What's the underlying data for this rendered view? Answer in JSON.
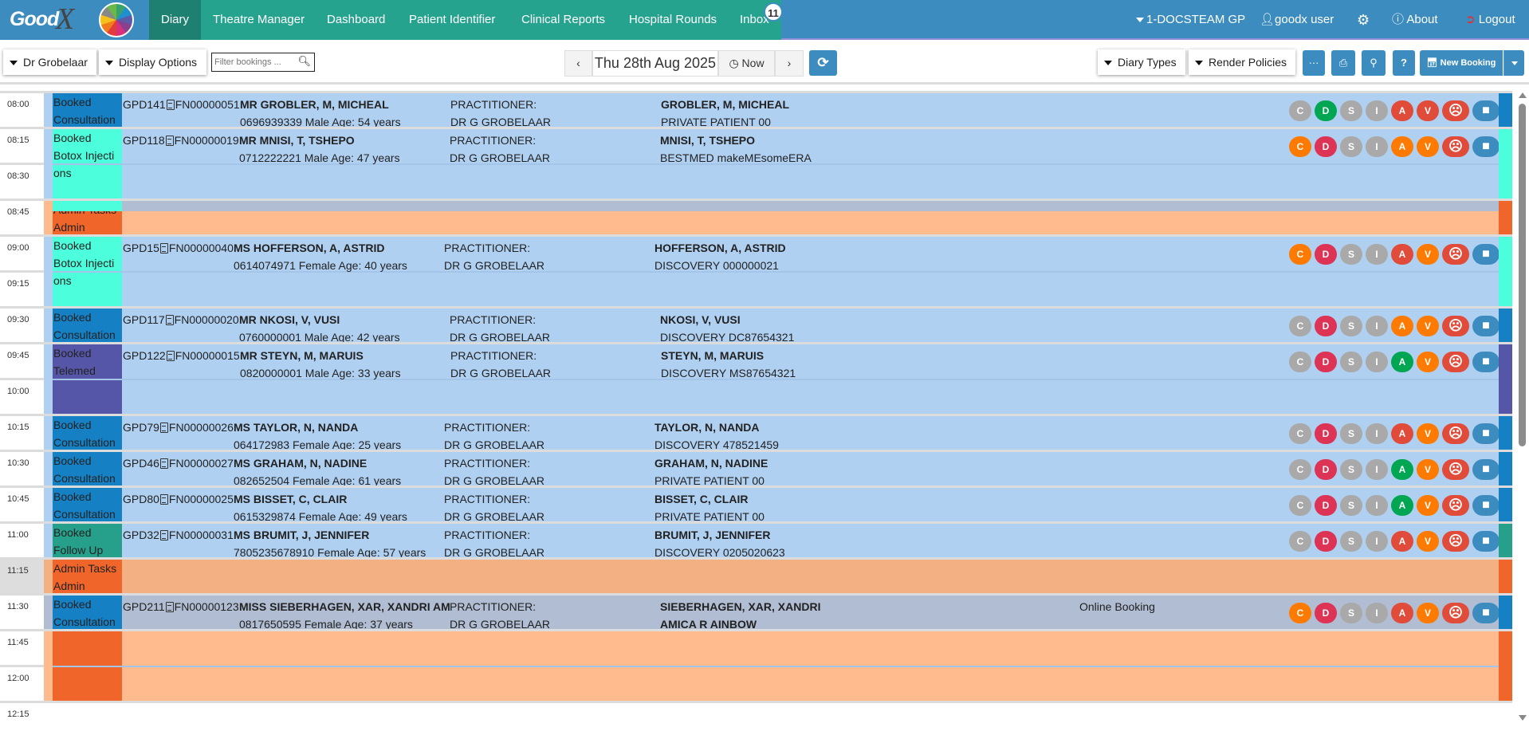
{
  "nav": {
    "logo_text": "GoodX",
    "items": [
      "Diary",
      "Theatre Manager",
      "Dashboard",
      "Patient Identifier",
      "Clinical Reports",
      "Hospital Rounds",
      "Inbox"
    ],
    "active": "Diary",
    "inbox_count": "11",
    "practice": "1-DOCSTEAM GP",
    "user": "goodx user",
    "about": "About",
    "logout": "Logout"
  },
  "toolbar": {
    "doctor": "Dr Grobelaar",
    "display_options": "Display Options",
    "filter_placeholder": "Filter bookings ...",
    "date": "Thu 28th Aug 2025",
    "now": "Now",
    "diary_types": "Diary Types",
    "render_policies": "Render Policies",
    "more": "···",
    "help": "?",
    "new_booking": "New Booking"
  },
  "times": [
    "08:00",
    "08:15",
    "08:30",
    "08:45",
    "09:00",
    "09:15",
    "09:30",
    "09:45",
    "10:00",
    "10:15",
    "10:30",
    "10:45",
    "11:00",
    "11:15",
    "11:30",
    "11:45",
    "12:00",
    "12:15"
  ],
  "highlighted_time": "11:15",
  "colors": {
    "gray": "#a9a9a9",
    "green": "#00a651",
    "red": "#e04b3a",
    "orange": "#ff7a00",
    "crimson": "#dd3355",
    "note": "#3d8cbf",
    "consultation": "#1580c4",
    "botox": "#4dfedd",
    "telemed": "#5656a8",
    "followup": "#26a08a",
    "admin": "#f06529",
    "row_bg": "#b0d0f2",
    "admin_bg": "#ffbb8e",
    "admin_bg_dark": "#f2b083",
    "online_bg": "#b0bdd2"
  },
  "bookings": [
    {
      "time": "08:00",
      "slots": 1,
      "status": [
        "Booked",
        "Consultation"
      ],
      "type": "consultation",
      "ref": "GPD141",
      "file": "FN00000051",
      "name": "MR GROBLER, M, MICHEAL",
      "contact": "0696939339 Male Age: 54 years",
      "practitioner_label": "PRACTITIONER:",
      "practitioner": "DR G GROBELAAR",
      "insurer_name": "GROBLER, M, MICHEAL",
      "insurer": "PRIVATE PATIENT 00",
      "note": "",
      "badges": [
        "gray",
        "green",
        "gray",
        "gray",
        "red",
        "red"
      ]
    },
    {
      "time": "08:15",
      "slots": 2,
      "status": [
        "Booked",
        "Botox Injecti",
        "ons"
      ],
      "type": "botox",
      "ref": "GPD118",
      "file": "FN00000019",
      "name": "MR MNISI, T, TSHEPO",
      "contact": "0712222221 Male Age: 47 years",
      "practitioner_label": "PRACTITIONER:",
      "practitioner": "DR G GROBELAAR",
      "insurer_name": "MNISI, T, TSHEPO",
      "insurer": "BESTMED makeMEsomeERA",
      "note": "",
      "badges": [
        "orange",
        "crimson",
        "gray",
        "gray",
        "orange",
        "orange"
      ]
    },
    {
      "time": "08:45",
      "slots": 1,
      "status": [
        "Admin Tasks",
        "Admin"
      ],
      "type": "admin",
      "bg": "admin_bg"
    },
    {
      "time": "09:00",
      "slots": 2,
      "status": [
        "Booked",
        "Botox Injecti",
        "ons"
      ],
      "type": "botox",
      "ref": "GPD15",
      "file": "FN00000040",
      "name": "MS HOFFERSON, A, ASTRID",
      "contact": "0614074971 Female Age: 40 years",
      "practitioner_label": "PRACTITIONER:",
      "practitioner": "DR G GROBELAAR",
      "insurer_name": "HOFFERSON, A, ASTRID",
      "insurer": "DISCOVERY 000000021",
      "note": "",
      "badges": [
        "orange",
        "crimson",
        "gray",
        "gray",
        "red",
        "orange"
      ]
    },
    {
      "time": "09:30",
      "slots": 1,
      "status": [
        "Booked",
        "Consultation"
      ],
      "type": "consultation",
      "ref": "GPD117",
      "file": "FN00000020",
      "name": "MR NKOSI, V, VUSI",
      "contact": "0760000001 Male Age: 42 years",
      "practitioner_label": "PRACTITIONER:",
      "practitioner": "DR G GROBELAAR",
      "insurer_name": "NKOSI, V, VUSI",
      "insurer": "DISCOVERY DC87654321",
      "note": "",
      "badges": [
        "gray",
        "crimson",
        "gray",
        "gray",
        "orange",
        "orange"
      ]
    },
    {
      "time": "09:45",
      "slots": 2,
      "status": [
        "Booked",
        "Telemed"
      ],
      "type": "telemed",
      "ref": "GPD122",
      "file": "FN00000015",
      "name": "MR STEYN, M, MARUIS",
      "contact": "0820000001 Male Age: 33 years",
      "practitioner_label": "PRACTITIONER:",
      "practitioner": "DR G GROBELAAR",
      "insurer_name": "STEYN, M, MARUIS",
      "insurer": "DISCOVERY MS87654321",
      "note": "",
      "badges": [
        "gray",
        "crimson",
        "gray",
        "gray",
        "green",
        "orange"
      ]
    },
    {
      "time": "10:15",
      "slots": 1,
      "status": [
        "Booked",
        "Consultation"
      ],
      "type": "consultation",
      "ref": "GPD79",
      "file": "FN00000026",
      "name": "MS TAYLOR, N, NANDA",
      "contact": "064172983 Female Age: 25 years",
      "practitioner_label": "PRACTITIONER:",
      "practitioner": "DR G GROBELAAR",
      "insurer_name": "TAYLOR, N, NANDA",
      "insurer": "DISCOVERY 478521459",
      "note": "",
      "badges": [
        "gray",
        "crimson",
        "gray",
        "gray",
        "red",
        "orange"
      ]
    },
    {
      "time": "10:30",
      "slots": 1,
      "status": [
        "Booked",
        "Consultation"
      ],
      "type": "consultation",
      "ref": "GPD46",
      "file": "FN00000027",
      "name": "MS GRAHAM, N, NADINE",
      "contact": "082652504 Female Age: 61 years",
      "practitioner_label": "PRACTITIONER:",
      "practitioner": "DR G GROBELAAR",
      "insurer_name": "GRAHAM, N, NADINE",
      "insurer": "PRIVATE PATIENT 00",
      "note": "",
      "badges": [
        "gray",
        "crimson",
        "gray",
        "gray",
        "green",
        "orange"
      ]
    },
    {
      "time": "10:45",
      "slots": 1,
      "status": [
        "Booked",
        "Consultation"
      ],
      "type": "consultation",
      "ref": "GPD80",
      "file": "FN00000025",
      "name": "MS BISSET, C, CLAIR",
      "contact": "0615329874 Female Age: 49 years",
      "practitioner_label": "PRACTITIONER:",
      "practitioner": "DR G GROBELAAR",
      "insurer_name": "BISSET, C, CLAIR",
      "insurer": "PRIVATE PATIENT 00",
      "note": "",
      "badges": [
        "gray",
        "crimson",
        "gray",
        "gray",
        "green",
        "orange"
      ]
    },
    {
      "time": "11:00",
      "slots": 1,
      "status": [
        "Booked",
        "Follow Up"
      ],
      "type": "followup",
      "ref": "GPD32",
      "file": "FN00000031",
      "name": "MS BRUMIT, J, JENNIFER",
      "contact": "7805235678910 Female Age: 57 years",
      "practitioner_label": "PRACTITIONER:",
      "practitioner": "DR G GROBELAAR",
      "insurer_name": "BRUMIT, J, JENNIFER",
      "insurer": "DISCOVERY 0205020623",
      "note": "",
      "badges": [
        "gray",
        "crimson",
        "gray",
        "gray",
        "red",
        "orange"
      ]
    },
    {
      "time": "11:15",
      "slots": 1,
      "status": [
        "Admin Tasks",
        "Admin"
      ],
      "type": "admin",
      "bg": "admin_bg_dark"
    },
    {
      "time": "11:30",
      "slots": 1,
      "status": [
        "Booked",
        "Consultation"
      ],
      "type": "consultation",
      "bg": "online_bg",
      "ref": "GPD211",
      "file": "FN00000123",
      "name": "MISS SIEBERHAGEN, XAR, XANDRI AMICA RAINBOW",
      "contact": "0817650595 Female Age: 37 years",
      "practitioner_label": "PRACTITIONER:",
      "practitioner": "DR G GROBELAAR",
      "insurer_name": "SIEBERHAGEN, XAR, XANDRI AMICA R AINBOW",
      "insurer": "",
      "note": "Online Booking",
      "badges": [
        "orange",
        "crimson",
        "gray",
        "gray",
        "red",
        "orange"
      ]
    },
    {
      "time": "11:45",
      "slots": 2,
      "status": [],
      "type": "admin",
      "bg": "admin_bg"
    }
  ],
  "badge_letters": [
    "C",
    "D",
    "S",
    "I",
    "A",
    "V"
  ]
}
